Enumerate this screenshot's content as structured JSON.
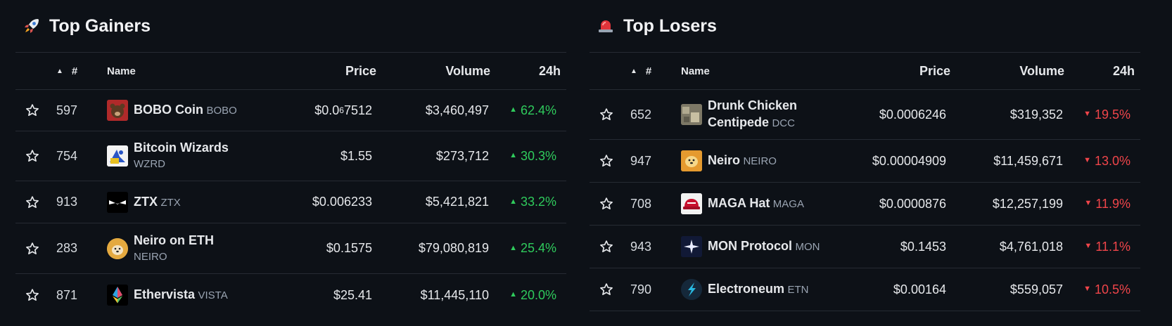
{
  "columns": {
    "rank": "#",
    "name": "Name",
    "price": "Price",
    "volume": "Volume",
    "change": "24h"
  },
  "gainers": {
    "title": "Top Gainers",
    "icon": "rocket-icon",
    "rows": [
      {
        "rank": "597",
        "name": "BOBO Coin",
        "symbol": "BOBO",
        "price_pre": "$0.0",
        "price_sub": "6",
        "price_post": "7512",
        "volume": "$3,460,497",
        "change": "62.4%"
      },
      {
        "rank": "754",
        "name": "Bitcoin Wizards",
        "symbol": "WZRD",
        "price": "$1.55",
        "volume": "$273,712",
        "change": "30.3%"
      },
      {
        "rank": "913",
        "name": "ZTX",
        "symbol": "ZTX",
        "price": "$0.006233",
        "volume": "$5,421,821",
        "change": "33.2%"
      },
      {
        "rank": "283",
        "name": "Neiro on ETH",
        "symbol": "NEIRO",
        "price": "$0.1575",
        "volume": "$79,080,819",
        "change": "25.4%"
      },
      {
        "rank": "871",
        "name": "Ethervista",
        "symbol": "VISTA",
        "price": "$25.41",
        "volume": "$11,445,110",
        "change": "20.0%"
      }
    ]
  },
  "losers": {
    "title": "Top Losers",
    "icon": "siren-icon",
    "rows": [
      {
        "rank": "652",
        "name_line1": "Drunk Chicken",
        "name_line2": "Centipede",
        "symbol": "DCC",
        "price": "$0.0006246",
        "volume": "$319,352",
        "change": "19.5%"
      },
      {
        "rank": "947",
        "name": "Neiro",
        "symbol": "NEIRO",
        "price": "$0.00004909",
        "volume": "$11,459,671",
        "change": "13.0%"
      },
      {
        "rank": "708",
        "name": "MAGA Hat",
        "symbol": "MAGA",
        "price": "$0.0000876",
        "volume": "$12,257,199",
        "change": "11.9%"
      },
      {
        "rank": "943",
        "name": "MON Protocol",
        "symbol": "MON",
        "price": "$0.1453",
        "volume": "$4,761,018",
        "change": "11.1%"
      },
      {
        "rank": "790",
        "name": "Electroneum",
        "symbol": "ETN",
        "price": "$0.00164",
        "volume": "$559,057",
        "change": "10.5%"
      }
    ]
  },
  "colors": {
    "background": "#0d1117",
    "positive": "#2fcb5c",
    "negative": "#f0454a",
    "divider": "#262b33",
    "symbol": "#9aa4b2"
  }
}
